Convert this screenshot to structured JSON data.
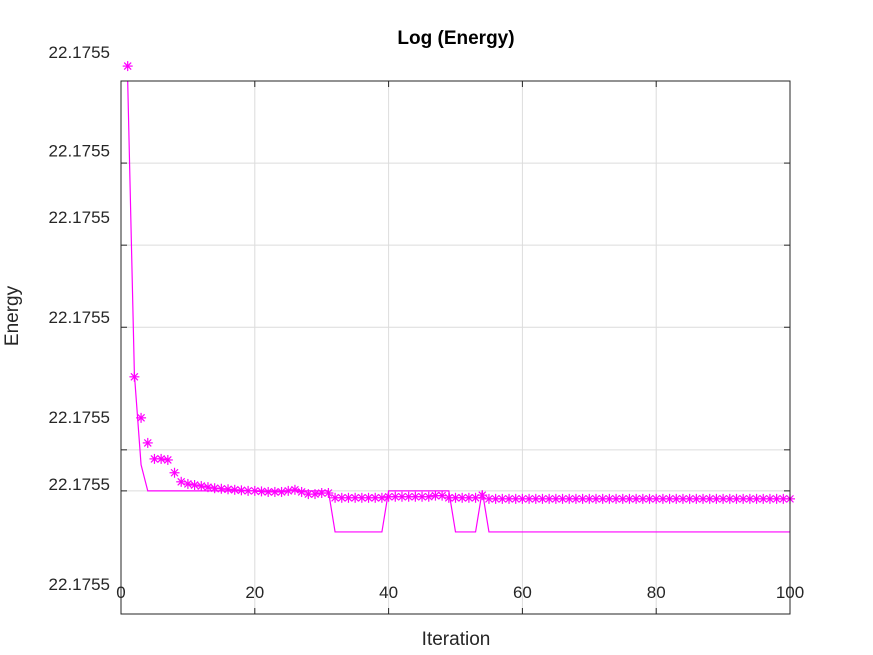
{
  "chart_data": {
    "type": "line",
    "title": "Log (Energy)",
    "xlabel": "Iteration",
    "ylabel": "Energy",
    "xlim": [
      0,
      100
    ],
    "ylim": [
      0,
      100
    ],
    "y_units_note": "relative offset",
    "grid": true,
    "xticks": [
      0,
      20,
      40,
      60,
      80,
      100
    ],
    "xtick_labels": [
      "0",
      "20",
      "40",
      "60",
      "80",
      "100"
    ],
    "ytick_labels": [
      {
        "value": 105.4,
        "label": "22.1755"
      },
      {
        "value": 87.0,
        "label": "22.1755"
      },
      {
        "value": 74.5,
        "label": "22.1755"
      },
      {
        "value": 55.7,
        "label": "22.1755"
      },
      {
        "value": 37.0,
        "label": "22.1755"
      },
      {
        "value": 24.4,
        "label": "22.1755"
      },
      {
        "value": 5.6,
        "label": "22.1755"
      }
    ],
    "ytick_marks": [
      84.6,
      69.2,
      53.8,
      30.8,
      23.1
    ],
    "colors": {
      "series": "#ff00ff",
      "axis": "#262626",
      "grid": "#dcdcdc"
    },
    "series": [
      {
        "name": "line",
        "style": "line",
        "points": [
          [
            1,
            100
          ],
          [
            2,
            45
          ],
          [
            3,
            28
          ],
          [
            4,
            23.1
          ],
          [
            31,
            23.1
          ],
          [
            32,
            15.4
          ],
          [
            39,
            15.4
          ],
          [
            40,
            23.1
          ],
          [
            49,
            23.1
          ],
          [
            50,
            15.4
          ],
          [
            53,
            15.4
          ],
          [
            54,
            23.1
          ],
          [
            55,
            15.4
          ],
          [
            100,
            15.4
          ]
        ]
      },
      {
        "name": "markers",
        "style": "asterisk",
        "points": [
          [
            1,
            102.8
          ],
          [
            2,
            44.5
          ],
          [
            3,
            36.8
          ],
          [
            4,
            32.1
          ],
          [
            5,
            29.1
          ],
          [
            6,
            29.1
          ],
          [
            7,
            28.9
          ],
          [
            8,
            26.5
          ],
          [
            9,
            24.8
          ],
          [
            10,
            24.4
          ],
          [
            11,
            24.2
          ],
          [
            12,
            24.0
          ],
          [
            13,
            23.8
          ],
          [
            14,
            23.6
          ],
          [
            15,
            23.5
          ],
          [
            16,
            23.4
          ],
          [
            17,
            23.3
          ],
          [
            18,
            23.2
          ],
          [
            19,
            23.1
          ],
          [
            20,
            23.1
          ],
          [
            21,
            23.0
          ],
          [
            22,
            22.9
          ],
          [
            23,
            22.9
          ],
          [
            24,
            22.9
          ],
          [
            25,
            23.1
          ],
          [
            26,
            23.3
          ],
          [
            27,
            22.9
          ],
          [
            28,
            22.5
          ],
          [
            29,
            22.5
          ],
          [
            30,
            22.7
          ],
          [
            31,
            22.7
          ],
          [
            32,
            21.8
          ],
          [
            33,
            21.8
          ],
          [
            34,
            21.8
          ],
          [
            35,
            21.8
          ],
          [
            36,
            21.8
          ],
          [
            37,
            21.8
          ],
          [
            38,
            21.8
          ],
          [
            39,
            21.8
          ],
          [
            40,
            22.0
          ],
          [
            41,
            22.0
          ],
          [
            42,
            22.0
          ],
          [
            43,
            22.0
          ],
          [
            44,
            22.0
          ],
          [
            45,
            22.0
          ],
          [
            46,
            22.0
          ],
          [
            47,
            22.2
          ],
          [
            48,
            22.2
          ],
          [
            49,
            21.8
          ],
          [
            50,
            21.8
          ],
          [
            51,
            21.8
          ],
          [
            52,
            21.8
          ],
          [
            53,
            21.8
          ],
          [
            54,
            22.3
          ],
          [
            55,
            21.6
          ],
          [
            56,
            21.6
          ],
          [
            57,
            21.6
          ],
          [
            58,
            21.6
          ],
          [
            59,
            21.6
          ],
          [
            60,
            21.6
          ],
          [
            61,
            21.6
          ],
          [
            62,
            21.6
          ],
          [
            63,
            21.6
          ],
          [
            64,
            21.6
          ],
          [
            65,
            21.6
          ],
          [
            66,
            21.6
          ],
          [
            67,
            21.6
          ],
          [
            68,
            21.6
          ],
          [
            69,
            21.6
          ],
          [
            70,
            21.6
          ],
          [
            71,
            21.6
          ],
          [
            72,
            21.6
          ],
          [
            73,
            21.6
          ],
          [
            74,
            21.6
          ],
          [
            75,
            21.6
          ],
          [
            76,
            21.6
          ],
          [
            77,
            21.6
          ],
          [
            78,
            21.6
          ],
          [
            79,
            21.6
          ],
          [
            80,
            21.6
          ],
          [
            81,
            21.6
          ],
          [
            82,
            21.6
          ],
          [
            83,
            21.6
          ],
          [
            84,
            21.6
          ],
          [
            85,
            21.6
          ],
          [
            86,
            21.6
          ],
          [
            87,
            21.6
          ],
          [
            88,
            21.6
          ],
          [
            89,
            21.6
          ],
          [
            90,
            21.6
          ],
          [
            91,
            21.6
          ],
          [
            92,
            21.6
          ],
          [
            93,
            21.6
          ],
          [
            94,
            21.6
          ],
          [
            95,
            21.6
          ],
          [
            96,
            21.6
          ],
          [
            97,
            21.6
          ],
          [
            98,
            21.6
          ],
          [
            99,
            21.6
          ],
          [
            100,
            21.6
          ]
        ]
      }
    ]
  }
}
